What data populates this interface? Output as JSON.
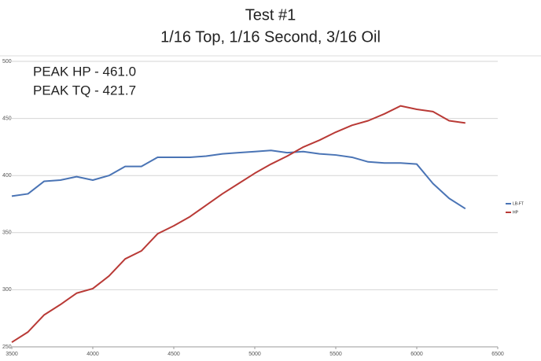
{
  "chart_data": {
    "type": "line",
    "title": "Test #1",
    "subtitle": "1/16 Top, 1/16 Second, 3/16 Oil",
    "annotations": [
      "PEAK HP - 461.0",
      "PEAK TQ - 421.7"
    ],
    "x": [
      3500,
      3600,
      3700,
      3800,
      3900,
      4000,
      4100,
      4200,
      4300,
      4400,
      4500,
      4600,
      4700,
      4800,
      4900,
      5000,
      5100,
      5200,
      5300,
      5400,
      5500,
      5600,
      5700,
      5800,
      5900,
      6000,
      6100,
      6200,
      6300
    ],
    "series": [
      {
        "name": "LB-FT",
        "color": "#4a74b5",
        "values": [
          382,
          384,
          395,
          396,
          399,
          396,
          400,
          408,
          408,
          416,
          416,
          416,
          417,
          419,
          420,
          421,
          422,
          420,
          421,
          419,
          418,
          416,
          412,
          411,
          411,
          410,
          393,
          380,
          371
        ]
      },
      {
        "name": "HP",
        "color": "#b93a36",
        "values": [
          254,
          263,
          278,
          287,
          297,
          301,
          312,
          327,
          334,
          349,
          356,
          364,
          374,
          384,
          393,
          402,
          410,
          417,
          425,
          431,
          438,
          444,
          448,
          454,
          461,
          458,
          456,
          448,
          446
        ]
      }
    ],
    "xlim": [
      3500,
      6500
    ],
    "xticks": [
      3500,
      4000,
      4500,
      5000,
      5500,
      6000,
      6500
    ],
    "ylim": [
      250,
      500
    ],
    "yticks": [
      250,
      300,
      350,
      400,
      450,
      500
    ],
    "grid": true,
    "legend": "right"
  }
}
